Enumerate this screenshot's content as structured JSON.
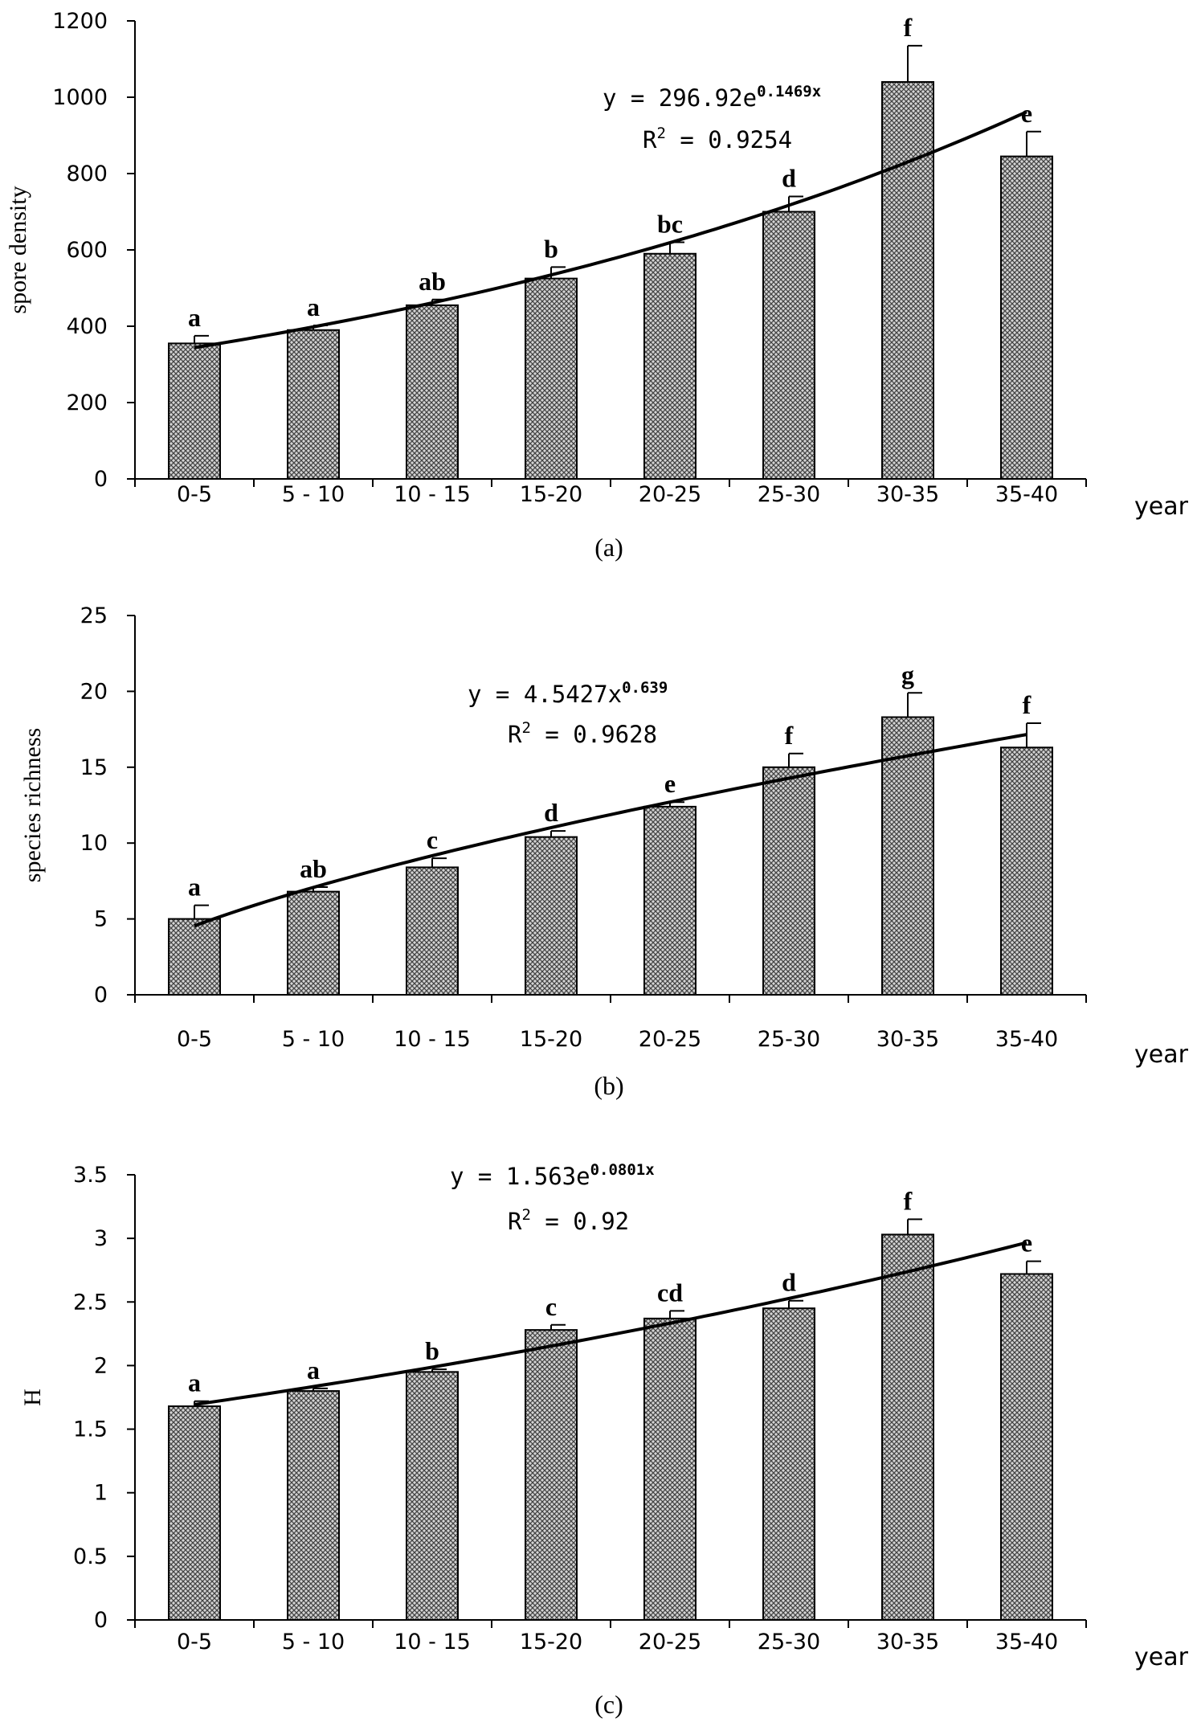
{
  "chart_data": [
    {
      "id": "a",
      "type": "bar",
      "panel_label": "(a)",
      "ylabel": "spore density",
      "xlabel": "year",
      "ylim": [
        0,
        1200
      ],
      "yticks": [
        "0",
        "200",
        "400",
        "600",
        "800",
        "1000",
        "1200"
      ],
      "categories": [
        "0-5",
        "5 - 10",
        "10 - 15",
        "15-20",
        "20-25",
        "25-30",
        "30-35",
        "35-40"
      ],
      "values": [
        355,
        390,
        455,
        525,
        590,
        700,
        1040,
        845
      ],
      "errors": [
        20,
        12,
        15,
        30,
        30,
        40,
        95,
        65
      ],
      "significance": [
        "a",
        "a",
        "ab",
        "b",
        "bc",
        "d",
        "f",
        "e"
      ],
      "trendline": {
        "type": "exponential",
        "a": 296.92,
        "b": 0.1469
      },
      "equation": {
        "base": "y = 296.92e",
        "exp": "0.1469x",
        "r2_prefix": "R",
        "r2_sup": "2",
        "r2_value": " = 0.9254"
      }
    },
    {
      "id": "b",
      "type": "bar",
      "panel_label": "(b)",
      "ylabel": "species richness",
      "xlabel": "year",
      "ylim": [
        0,
        25
      ],
      "yticks": [
        "0",
        "5",
        "10",
        "15",
        "20",
        "25"
      ],
      "categories": [
        "0-5",
        "5 - 10",
        "10 - 15",
        "15-20",
        "20-25",
        "25-30",
        "30-35",
        "35-40"
      ],
      "values": [
        5.0,
        6.8,
        8.4,
        10.4,
        12.4,
        15.0,
        18.3,
        16.3
      ],
      "errors": [
        0.9,
        0.3,
        0.6,
        0.4,
        0.3,
        0.9,
        1.6,
        1.6
      ],
      "significance": [
        "a",
        "ab",
        "c",
        "d",
        "e",
        "f",
        "g",
        "f"
      ],
      "trendline": {
        "type": "power",
        "a": 4.5427,
        "b": 0.639
      },
      "equation": {
        "base": "y = 4.5427x",
        "exp": "0.639",
        "r2_prefix": "R",
        "r2_sup": "2",
        "r2_value": " = 0.9628"
      }
    },
    {
      "id": "c",
      "type": "bar",
      "panel_label": "(c)",
      "ylabel": "H",
      "xlabel": "year",
      "ylim": [
        0,
        3.5
      ],
      "yticks": [
        "0",
        "0.5",
        "1",
        "1.5",
        "2",
        "2.5",
        "3",
        "3.5"
      ],
      "categories": [
        "0-5",
        "5 - 10",
        "10 - 15",
        "15-20",
        "20-25",
        "25-30",
        "30-35",
        "35-40"
      ],
      "values": [
        1.68,
        1.8,
        1.95,
        2.28,
        2.37,
        2.45,
        3.03,
        2.72
      ],
      "errors": [
        0.04,
        0.02,
        0.02,
        0.04,
        0.06,
        0.06,
        0.12,
        0.1
      ],
      "significance": [
        "a",
        "a",
        "b",
        "c",
        "cd",
        "d",
        "f",
        "e"
      ],
      "trendline": {
        "type": "exponential",
        "a": 1.563,
        "b": 0.0801
      },
      "equation": {
        "base": "y = 1.563e",
        "exp": "0.0801x",
        "r2_prefix": "R",
        "r2_sup": "2",
        "r2_value": " = 0.92"
      }
    }
  ]
}
